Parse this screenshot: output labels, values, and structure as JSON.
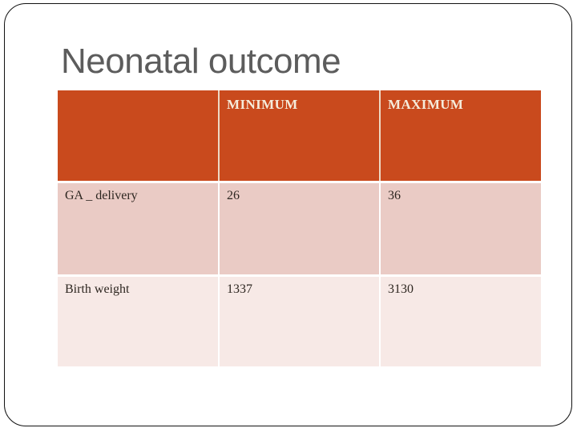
{
  "title": "Neonatal outcome",
  "table": {
    "headers": [
      "",
      "MINIMUM",
      "MAXIMUM"
    ],
    "rows": [
      {
        "label": "GA _ delivery",
        "minimum": "26",
        "maximum": "36"
      },
      {
        "label": "Birth weight",
        "minimum": "1337",
        "maximum": "3130"
      }
    ]
  },
  "colors": {
    "header_bg": "#C94A1D",
    "header_text": "#F5ECDB",
    "row_odd_bg": "#EACBC5",
    "row_even_bg": "#F7E9E6",
    "body_text": "#2D2620",
    "title_text": "#5C5C5C",
    "slide_border": "#111111",
    "header_divider": "#EDD9C5",
    "body_divider": "#FFFFFF"
  }
}
